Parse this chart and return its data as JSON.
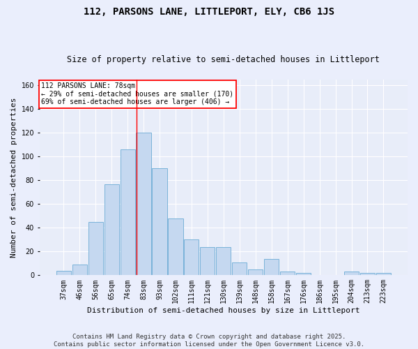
{
  "title": "112, PARSONS LANE, LITTLEPORT, ELY, CB6 1JS",
  "subtitle": "Size of property relative to semi-detached houses in Littleport",
  "xlabel": "Distribution of semi-detached houses by size in Littleport",
  "ylabel": "Number of semi-detached properties",
  "categories": [
    "37sqm",
    "46sqm",
    "56sqm",
    "65sqm",
    "74sqm",
    "83sqm",
    "93sqm",
    "102sqm",
    "111sqm",
    "121sqm",
    "130sqm",
    "139sqm",
    "148sqm",
    "158sqm",
    "167sqm",
    "176sqm",
    "186sqm",
    "195sqm",
    "204sqm",
    "213sqm",
    "223sqm"
  ],
  "values": [
    4,
    9,
    45,
    77,
    106,
    120,
    90,
    48,
    30,
    24,
    24,
    11,
    5,
    14,
    3,
    2,
    0,
    0,
    3,
    2,
    2
  ],
  "bar_color": "#c5d8f0",
  "bar_edge_color": "#6aaad4",
  "vline_x": 4.55,
  "vline_color": "red",
  "annotation_title": "112 PARSONS LANE: 78sqm",
  "annotation_line1": "← 29% of semi-detached houses are smaller (170)",
  "annotation_line2": "69% of semi-detached houses are larger (406) →",
  "annotation_box_color": "white",
  "annotation_box_edge": "red",
  "ylim": [
    0,
    165
  ],
  "yticks": [
    0,
    20,
    40,
    60,
    80,
    100,
    120,
    140,
    160
  ],
  "footer_line1": "Contains HM Land Registry data © Crown copyright and database right 2025.",
  "footer_line2": "Contains public sector information licensed under the Open Government Licence v3.0.",
  "bg_color": "#eaeefc",
  "plot_bg_color": "#e8edf9",
  "grid_color": "#ffffff",
  "title_fontsize": 10,
  "subtitle_fontsize": 8.5,
  "axis_label_fontsize": 8,
  "tick_fontsize": 7,
  "footer_fontsize": 6.5
}
